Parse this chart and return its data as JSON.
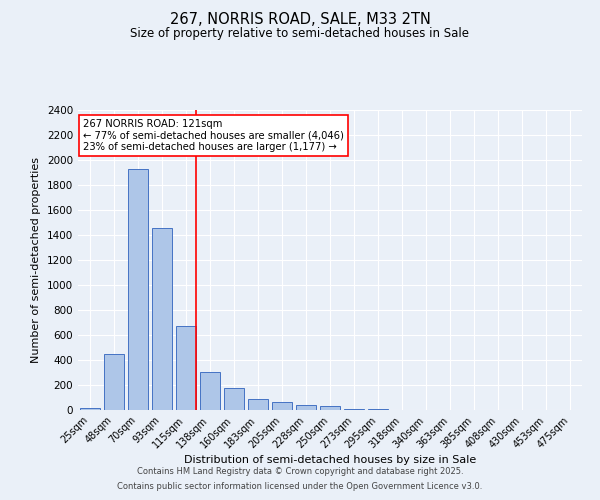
{
  "title1": "267, NORRIS ROAD, SALE, M33 2TN",
  "title2": "Size of property relative to semi-detached houses in Sale",
  "xlabel": "Distribution of semi-detached houses by size in Sale",
  "ylabel": "Number of semi-detached properties",
  "bar_labels": [
    "25sqm",
    "48sqm",
    "70sqm",
    "93sqm",
    "115sqm",
    "138sqm",
    "160sqm",
    "183sqm",
    "205sqm",
    "228sqm",
    "250sqm",
    "273sqm",
    "295sqm",
    "318sqm",
    "340sqm",
    "363sqm",
    "385sqm",
    "408sqm",
    "430sqm",
    "453sqm",
    "475sqm"
  ],
  "bar_values": [
    20,
    450,
    1930,
    1455,
    670,
    305,
    175,
    90,
    62,
    42,
    30,
    10,
    8,
    4,
    2,
    1,
    0,
    0,
    0,
    0,
    0
  ],
  "bar_color": "#aec6e8",
  "bar_edge_color": "#4472c4",
  "annotation_line1": "267 NORRIS ROAD: 121sqm",
  "annotation_line2": "← 77% of semi-detached houses are smaller (4,046)",
  "annotation_line3": "23% of semi-detached houses are larger (1,177) →",
  "red_line_index": 4,
  "ylim": [
    0,
    2400
  ],
  "yticks": [
    0,
    200,
    400,
    600,
    800,
    1000,
    1200,
    1400,
    1600,
    1800,
    2000,
    2200,
    2400
  ],
  "footer1": "Contains HM Land Registry data © Crown copyright and database right 2025.",
  "footer2": "Contains public sector information licensed under the Open Government Licence v3.0.",
  "bg_color": "#eaf0f8",
  "grid_color": "#ffffff"
}
